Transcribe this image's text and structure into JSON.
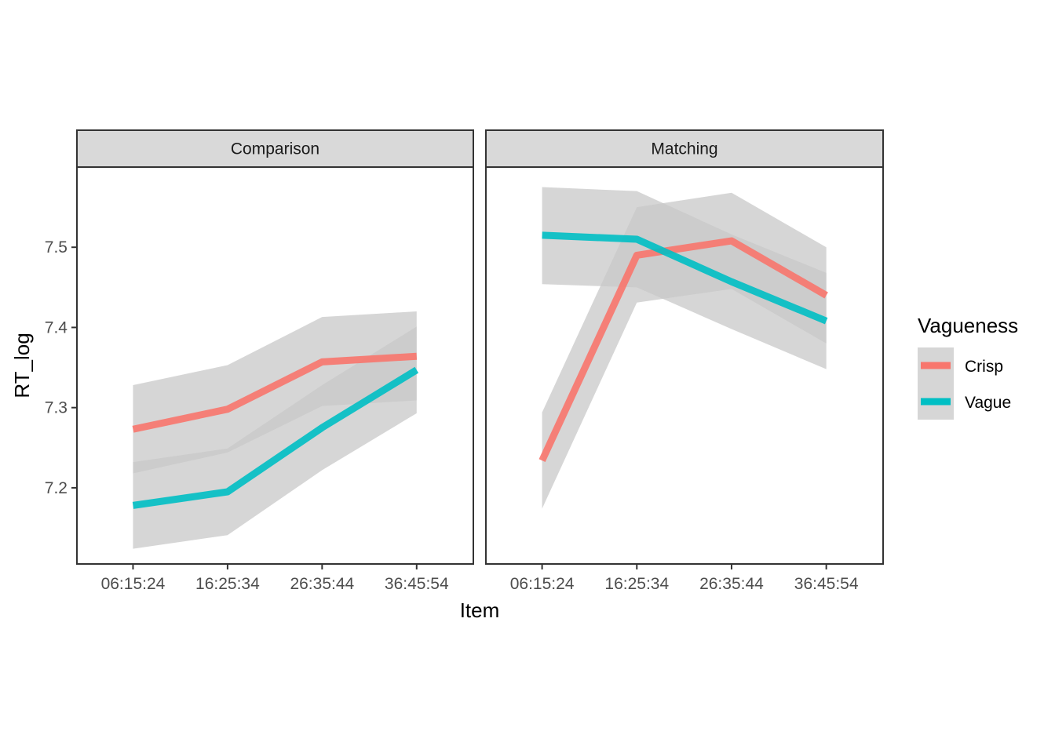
{
  "chart_data": {
    "type": "line",
    "xlabel": "Item",
    "ylabel": "RT_log",
    "categories": [
      "06:15:24",
      "16:25:34",
      "26:35:44",
      "36:45:54"
    ],
    "y_ticks": [
      7.2,
      7.3,
      7.4,
      7.5
    ],
    "ylim": [
      7.105,
      7.6
    ],
    "grid": false,
    "legend": {
      "title": "Vagueness",
      "position": "right",
      "entries": [
        "Crisp",
        "Vague"
      ]
    },
    "series_colors": {
      "Crisp": "#F8766D",
      "Vague": "#00BFC4"
    },
    "band_color": "#c8c8c8",
    "panels": [
      {
        "strip": "Comparison",
        "series": [
          {
            "name": "Crisp",
            "values": [
              7.273,
              7.298,
              7.357,
              7.364
            ],
            "lower": [
              7.218,
              7.244,
              7.302,
              7.309
            ],
            "upper": [
              7.328,
              7.353,
              7.413,
              7.42
            ]
          },
          {
            "name": "Vague",
            "values": [
              7.178,
              7.195,
              7.275,
              7.347
            ],
            "lower": [
              7.124,
              7.141,
              7.222,
              7.293
            ],
            "upper": [
              7.232,
              7.249,
              7.328,
              7.401
            ]
          }
        ]
      },
      {
        "strip": "Matching",
        "series": [
          {
            "name": "Crisp",
            "values": [
              7.234,
              7.49,
              7.508,
              7.44
            ],
            "lower": [
              7.174,
              7.431,
              7.448,
              7.38
            ],
            "upper": [
              7.294,
              7.55,
              7.568,
              7.5
            ]
          },
          {
            "name": "Vague",
            "values": [
              7.515,
              7.51,
              7.457,
              7.408
            ],
            "lower": [
              7.454,
              7.45,
              7.398,
              7.348
            ],
            "upper": [
              7.575,
              7.57,
              7.516,
              7.468
            ]
          }
        ]
      }
    ]
  }
}
